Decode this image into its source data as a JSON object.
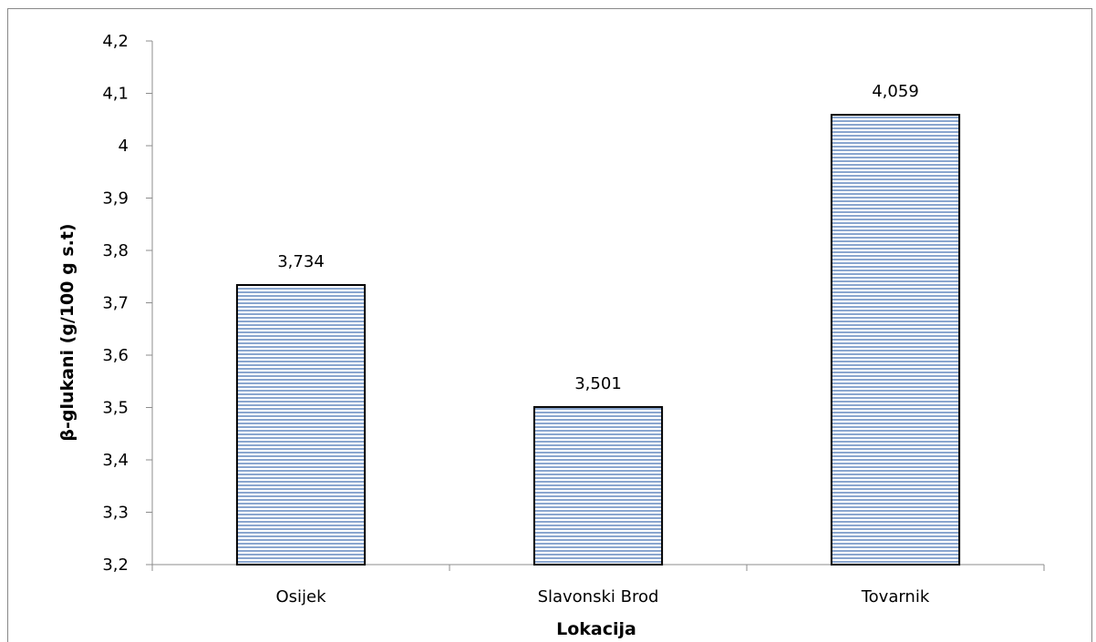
{
  "chart_data": {
    "type": "bar",
    "categories": [
      "Osijek",
      "Slavonski Brod",
      "Tovarnik"
    ],
    "values": [
      3.734,
      3.501,
      4.059
    ],
    "data_labels": [
      "3,734",
      "3,501",
      "4,059"
    ],
    "xlabel": "Lokacija",
    "ylabel": "β-glukani (g/100  g s.t)",
    "ylim": [
      3.2,
      4.2
    ],
    "yticks": [
      3.2,
      3.3,
      3.4,
      3.5,
      3.6,
      3.7,
      3.8,
      3.9,
      4.0,
      4.1,
      4.2
    ],
    "ytick_labels": [
      "3,2",
      "3,3",
      "3,4",
      "3,5",
      "3,6",
      "3,7",
      "3,8",
      "3,9",
      "4",
      "4,1",
      "4,2"
    ],
    "grid": false,
    "legend": "none",
    "bar_fill": "#8aa6cf",
    "bar_stripe": "#ffffff",
    "bar_edge": "#000000"
  }
}
